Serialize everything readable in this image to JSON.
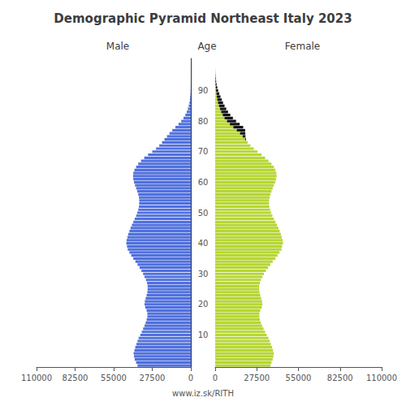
{
  "chart_data": {
    "type": "bar",
    "orientation": "horizontal",
    "stacked": true,
    "grid": false,
    "title": "Demographic Pyramid Northeast Italy 2023",
    "ylabel": "Age",
    "annotations": [
      "www.iz.sk/RITH"
    ],
    "categories": [
      null,
      null,
      null,
      null,
      null,
      null,
      null,
      null,
      null,
      null,
      10,
      null,
      null,
      null,
      null,
      null,
      null,
      null,
      null,
      null,
      20,
      null,
      null,
      null,
      null,
      null,
      null,
      null,
      null,
      null,
      30,
      null,
      null,
      null,
      null,
      null,
      null,
      null,
      null,
      null,
      40,
      null,
      null,
      null,
      null,
      null,
      null,
      null,
      null,
      null,
      50,
      null,
      null,
      null,
      null,
      null,
      null,
      null,
      null,
      null,
      60,
      null,
      null,
      null,
      null,
      null,
      null,
      null,
      null,
      null,
      70,
      null,
      null,
      null,
      null,
      null,
      null,
      null,
      null,
      null,
      80,
      null,
      null,
      null,
      null,
      null,
      null,
      null,
      null,
      null,
      90,
      null,
      null,
      null,
      null,
      null,
      null,
      null,
      null,
      null,
      null
    ],
    "xlim": [
      110000,
      0
    ],
    "xticks": [
      0,
      27500,
      55000,
      82500,
      110000
    ],
    "x2lim": [
      0,
      110000
    ],
    "x2ticks": [
      0,
      27500,
      55000,
      82500,
      110000
    ],
    "series": [
      {
        "name": "Male",
        "axis": "x",
        "values": [
          38000,
          39000,
          40000,
          40500,
          40800,
          40200,
          39600,
          38800,
          38000,
          37200,
          36000,
          35000,
          34000,
          33000,
          32200,
          31500,
          31000,
          31000,
          31500,
          32500,
          33000,
          32800,
          32200,
          31500,
          31000,
          30800,
          30800,
          31200,
          32000,
          33000,
          34000,
          35200,
          36500,
          38000,
          39500,
          41000,
          42500,
          43800,
          45000,
          45500,
          46000,
          45800,
          45200,
          44600,
          43800,
          43000,
          42000,
          41000,
          40000,
          39000,
          38200,
          37500,
          37000,
          36800,
          36800,
          37000,
          37500,
          38200,
          39000,
          39800,
          40500,
          41000,
          41200,
          41000,
          40200,
          39000,
          37500,
          35500,
          33200,
          30500,
          27500,
          24800,
          22500,
          20500,
          18800,
          17000,
          15200,
          13200,
          11000,
          8800,
          6800,
          5200,
          3900,
          2900,
          2100,
          1500,
          1000,
          680,
          440,
          270,
          160,
          90,
          50,
          26,
          12,
          5,
          2,
          1,
          0,
          0,
          0
        ]
      },
      {
        "axis": "x",
        "color": "#111111",
        "values": [
          0,
          0,
          0,
          0,
          0,
          0,
          0,
          0,
          0,
          0,
          0,
          0,
          0,
          0,
          0,
          0,
          0,
          0,
          0,
          0,
          0,
          0,
          0,
          0,
          0,
          0,
          0,
          0,
          0,
          0,
          0,
          0,
          0,
          0,
          0,
          0,
          0,
          0,
          0,
          0,
          0,
          0,
          0,
          0,
          0,
          0,
          0,
          0,
          0,
          0,
          0,
          0,
          0,
          0,
          0,
          0,
          0,
          0,
          0,
          0,
          0,
          0,
          0,
          0,
          0,
          0,
          0,
          0,
          0,
          0,
          0,
          0,
          0,
          0,
          0,
          0,
          0,
          0,
          0,
          0,
          0,
          0,
          0,
          0,
          0,
          0,
          0,
          0,
          0,
          0,
          0,
          0,
          0,
          0,
          0,
          0,
          0,
          0,
          0,
          0,
          0
        ]
      },
      {
        "name": "Female",
        "axis": "x2",
        "values": [
          36500,
          37200,
          38000,
          38500,
          38800,
          38200,
          37600,
          36800,
          36000,
          35200,
          34000,
          33000,
          32000,
          31000,
          30200,
          29500,
          29200,
          29200,
          29800,
          30800,
          31200,
          31000,
          30400,
          29800,
          29300,
          29000,
          29000,
          29500,
          30200,
          31200,
          32200,
          33500,
          35000,
          36500,
          38000,
          39800,
          41200,
          42500,
          43800,
          44200,
          44800,
          44600,
          44000,
          43400,
          42600,
          41800,
          40800,
          39800,
          38800,
          37800,
          37000,
          36300,
          35800,
          35600,
          35600,
          36000,
          36500,
          37200,
          38000,
          38800,
          39600,
          40200,
          40600,
          40400,
          39800,
          38800,
          37200,
          35200,
          33000,
          30600,
          28000,
          25500,
          23300,
          21500,
          19800,
          18200,
          16400,
          14300,
          12000,
          9700,
          7800,
          6200,
          5000,
          4000,
          3200,
          2500,
          1900,
          1450,
          1100,
          820,
          590,
          410,
          270,
          165,
          90,
          44,
          19,
          7,
          2,
          0,
          0
        ]
      },
      {
        "axis": "x2",
        "color": "#111111",
        "values": [
          0,
          0,
          0,
          0,
          0,
          0,
          0,
          0,
          0,
          0,
          0,
          0,
          0,
          0,
          0,
          0,
          0,
          0,
          0,
          0,
          0,
          0,
          0,
          0,
          0,
          0,
          0,
          0,
          0,
          0,
          0,
          0,
          0,
          0,
          0,
          0,
          0,
          0,
          0,
          0,
          0,
          0,
          0,
          0,
          0,
          0,
          0,
          0,
          0,
          0,
          0,
          0,
          0,
          0,
          0,
          0,
          0,
          0,
          0,
          0,
          0,
          0,
          0,
          0,
          0,
          0,
          0,
          0,
          0,
          0,
          0,
          0,
          0,
          0,
          500,
          1800,
          3500,
          5500,
          6500,
          6500,
          6000,
          5500,
          5000,
          4500,
          4100,
          3700,
          3300,
          2900,
          2400,
          1900,
          1400,
          1000,
          700,
          460,
          290,
          160,
          75,
          30,
          8,
          0,
          0
        ]
      }
    ]
  }
}
